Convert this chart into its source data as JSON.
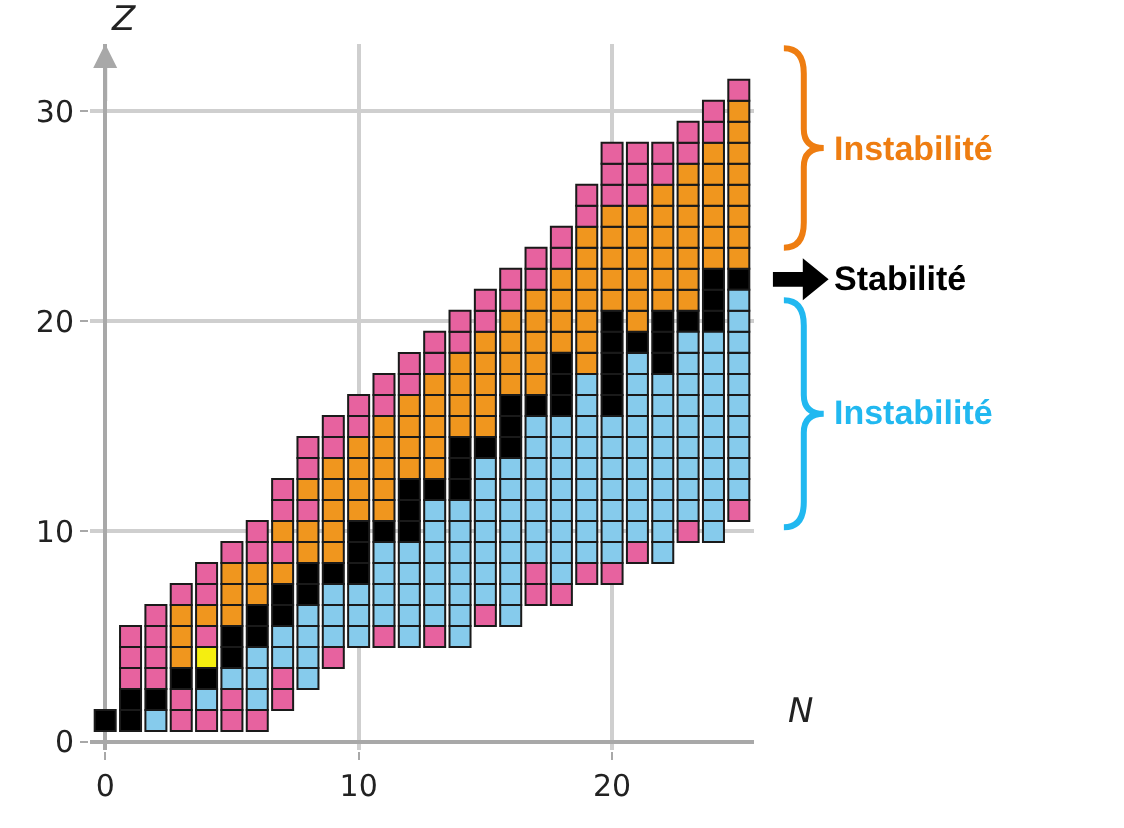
{
  "chart_data": {
    "type": "scatter",
    "xlabel": "N",
    "ylabel": "Z",
    "xlim": [
      -0.6,
      25.6
    ],
    "ylim": [
      -0.4,
      33.2
    ],
    "xticks": [
      0,
      10,
      20
    ],
    "yticks": [
      0,
      10,
      20,
      30
    ],
    "grid": true,
    "marker": "square",
    "annotations": [
      "Instabilité",
      "Stabilité",
      "Instabilité"
    ],
    "series": [
      {
        "color": "#000000",
        "x": [
          0,
          1,
          1,
          2,
          3,
          4,
          5,
          5,
          6,
          6,
          7,
          7,
          8,
          8,
          9,
          10,
          10,
          10,
          11,
          12,
          12,
          12,
          13,
          14,
          14,
          14,
          15,
          16,
          16,
          16,
          17,
          18,
          18,
          18,
          20,
          20,
          20,
          20,
          20,
          21,
          22,
          22,
          22,
          23,
          24,
          24,
          24,
          25
        ],
        "values": [
          1,
          1,
          2,
          2,
          3,
          3,
          4,
          5,
          5,
          6,
          6,
          7,
          7,
          8,
          8,
          8,
          9,
          10,
          10,
          10,
          11,
          12,
          12,
          12,
          13,
          14,
          14,
          14,
          15,
          16,
          16,
          16,
          17,
          18,
          16,
          17,
          18,
          19,
          20,
          19,
          18,
          19,
          20,
          20,
          20,
          21,
          22,
          22
        ]
      },
      {
        "color": "#f5ee10",
        "x": [
          4
        ],
        "values": [
          4
        ]
      },
      {
        "color": "#86cbec",
        "x": [
          2,
          4,
          5,
          6,
          6,
          6,
          7,
          7,
          8,
          8,
          8,
          8,
          9,
          9,
          9,
          10,
          10,
          10,
          11,
          11,
          11,
          11,
          12,
          12,
          12,
          12,
          12,
          13,
          13,
          13,
          13,
          13,
          13,
          14,
          14,
          14,
          14,
          14,
          14,
          14,
          15,
          15,
          15,
          15,
          15,
          15,
          15,
          16,
          16,
          16,
          16,
          16,
          16,
          16,
          16,
          17,
          17,
          17,
          17,
          17,
          17,
          17,
          18,
          18,
          18,
          18,
          18,
          18,
          18,
          18,
          19,
          19,
          19,
          19,
          19,
          19,
          19,
          19,
          19,
          20,
          20,
          20,
          20,
          20,
          20,
          20,
          21,
          21,
          21,
          21,
          21,
          21,
          21,
          21,
          21,
          22,
          22,
          22,
          22,
          22,
          22,
          22,
          22,
          22,
          23,
          23,
          23,
          23,
          23,
          23,
          23,
          23,
          23,
          24,
          24,
          24,
          24,
          24,
          24,
          24,
          24,
          24,
          24,
          25,
          25,
          25,
          25,
          25,
          25,
          25,
          25,
          25,
          25
        ],
        "values": [
          1,
          2,
          3,
          2,
          3,
          4,
          4,
          5,
          3,
          4,
          5,
          6,
          5,
          6,
          7,
          5,
          6,
          7,
          6,
          7,
          8,
          9,
          5,
          6,
          7,
          8,
          9,
          6,
          7,
          8,
          9,
          10,
          11,
          5,
          6,
          7,
          8,
          9,
          10,
          11,
          7,
          8,
          9,
          10,
          11,
          12,
          13,
          6,
          7,
          8,
          9,
          10,
          11,
          12,
          13,
          9,
          10,
          11,
          12,
          13,
          14,
          15,
          8,
          9,
          10,
          11,
          12,
          13,
          14,
          15,
          9,
          10,
          11,
          12,
          13,
          14,
          15,
          16,
          17,
          9,
          10,
          11,
          12,
          13,
          14,
          15,
          10,
          11,
          12,
          13,
          14,
          15,
          16,
          17,
          18,
          9,
          10,
          11,
          12,
          13,
          14,
          15,
          16,
          17,
          11,
          12,
          13,
          14,
          15,
          16,
          17,
          18,
          19,
          10,
          11,
          12,
          13,
          14,
          15,
          16,
          17,
          18,
          19,
          12,
          13,
          14,
          15,
          16,
          17,
          18,
          19,
          20,
          21
        ]
      },
      {
        "color": "#f0961e",
        "x": [
          3,
          3,
          3,
          4,
          5,
          5,
          5,
          6,
          6,
          7,
          7,
          8,
          8,
          8,
          9,
          9,
          9,
          9,
          9,
          10,
          10,
          10,
          10,
          11,
          11,
          11,
          11,
          11,
          12,
          12,
          12,
          12,
          13,
          13,
          13,
          13,
          13,
          14,
          14,
          14,
          14,
          15,
          15,
          15,
          15,
          15,
          16,
          16,
          16,
          16,
          17,
          17,
          17,
          17,
          17,
          18,
          18,
          18,
          18,
          19,
          19,
          19,
          19,
          19,
          19,
          19,
          20,
          20,
          20,
          20,
          20,
          21,
          21,
          21,
          21,
          21,
          21,
          22,
          22,
          22,
          22,
          22,
          22,
          23,
          23,
          23,
          23,
          23,
          23,
          23,
          24,
          24,
          24,
          24,
          24,
          24,
          25,
          25,
          25,
          25,
          25,
          25,
          25,
          25
        ],
        "values": [
          4,
          5,
          6,
          6,
          6,
          7,
          8,
          7,
          8,
          8,
          10,
          9,
          10,
          12,
          9,
          10,
          11,
          12,
          13,
          11,
          12,
          13,
          14,
          11,
          12,
          13,
          14,
          15,
          13,
          14,
          15,
          16,
          13,
          14,
          15,
          16,
          17,
          15,
          16,
          17,
          18,
          15,
          16,
          17,
          18,
          19,
          17,
          18,
          19,
          20,
          17,
          18,
          19,
          20,
          21,
          19,
          20,
          21,
          22,
          18,
          19,
          20,
          21,
          22,
          23,
          24,
          21,
          22,
          23,
          24,
          25,
          20,
          21,
          22,
          23,
          24,
          25,
          21,
          22,
          23,
          24,
          25,
          26,
          21,
          22,
          23,
          24,
          25,
          26,
          27,
          23,
          24,
          25,
          26,
          27,
          28,
          23,
          24,
          25,
          26,
          27,
          28,
          29,
          30
        ]
      },
      {
        "color": "#e7629f",
        "x": [
          1,
          1,
          1,
          2,
          2,
          2,
          2,
          3,
          3,
          3,
          4,
          4,
          4,
          4,
          5,
          5,
          5,
          6,
          6,
          6,
          7,
          7,
          7,
          7,
          7,
          8,
          8,
          8,
          9,
          9,
          9,
          10,
          10,
          11,
          11,
          11,
          12,
          12,
          13,
          13,
          13,
          14,
          14,
          15,
          15,
          15,
          16,
          16,
          17,
          17,
          17,
          17,
          18,
          18,
          18,
          19,
          19,
          19,
          20,
          20,
          20,
          20,
          21,
          21,
          21,
          21,
          22,
          22,
          23,
          23,
          23,
          24,
          24,
          25,
          25
        ],
        "values": [
          3,
          4,
          5,
          3,
          4,
          5,
          6,
          1,
          2,
          7,
          1,
          5,
          7,
          8,
          1,
          2,
          9,
          1,
          9,
          10,
          2,
          3,
          9,
          11,
          12,
          11,
          13,
          14,
          4,
          14,
          15,
          15,
          16,
          5,
          16,
          17,
          17,
          18,
          5,
          18,
          19,
          19,
          20,
          6,
          20,
          21,
          21,
          22,
          7,
          8,
          22,
          23,
          7,
          23,
          24,
          8,
          25,
          26,
          8,
          26,
          27,
          28,
          9,
          26,
          27,
          28,
          27,
          28,
          10,
          28,
          29,
          29,
          30,
          11,
          31
        ]
      }
    ]
  }
}
